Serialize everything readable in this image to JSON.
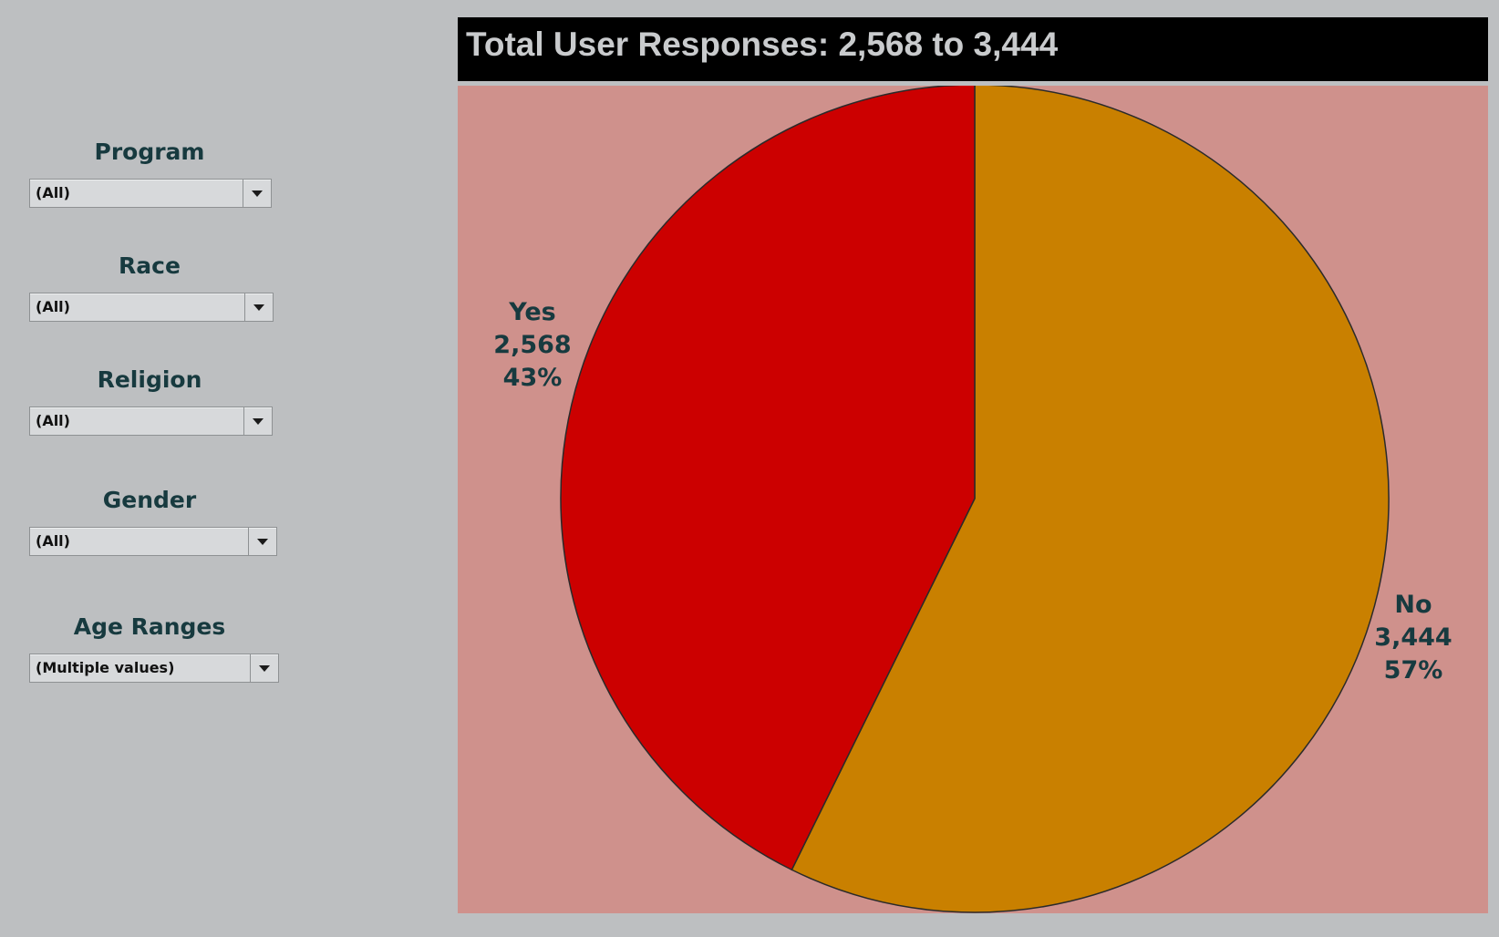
{
  "filters": [
    {
      "label": "Program",
      "value": "(All)"
    },
    {
      "label": "Race",
      "value": "(All)"
    },
    {
      "label": "Religion",
      "value": "(All)"
    },
    {
      "label": "Gender",
      "value": "(All)"
    },
    {
      "label": "Age Ranges",
      "value": "(Multiple values)"
    }
  ],
  "colors": {
    "background": "#bdbfc1",
    "title_bar": "#000000",
    "chart_background": "#cf918c",
    "yes": "#cc0000",
    "no": "#c98000",
    "label_text": "#173a3f"
  },
  "chart_data": {
    "type": "pie",
    "title": "Total User Responses: 2,568 to 3,444",
    "slices": [
      {
        "label": "Yes",
        "value": 2568,
        "value_text": "2,568",
        "percent_text": "43%",
        "color": "#cc0000"
      },
      {
        "label": "No",
        "value": 3444,
        "value_text": "3,444",
        "percent_text": "57%",
        "color": "#c98000"
      }
    ],
    "legend": "none"
  }
}
